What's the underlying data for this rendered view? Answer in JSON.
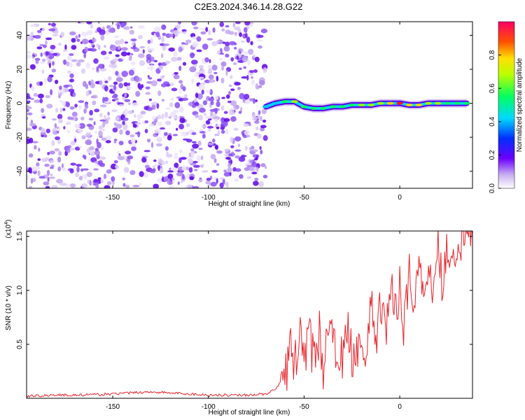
{
  "title": "C2E3.2024.346.14.28.G22",
  "colors": {
    "snr_line": "#e8232a",
    "axis": "#000000"
  },
  "chart_data": [
    {
      "type": "heatmap",
      "title": "C2E3.2024.346.14.28.G22",
      "xlabel": "Height of straight line (km)",
      "ylabel": "Frequency (Hz)",
      "xlim": [
        -195,
        38
      ],
      "ylim": [
        -50,
        48
      ],
      "xticks": [
        -150,
        -100,
        -50,
        0
      ],
      "xtick_labels": [
        "-150",
        "-100",
        "-50",
        "0"
      ],
      "yticks": [
        40,
        20,
        0,
        -20,
        -40
      ],
      "ytick_labels": [
        "40",
        "20",
        "0",
        "-20",
        "-40"
      ],
      "noise_region_x": [
        -195,
        -70
      ],
      "signal_ridge": {
        "x": [
          -70,
          -65,
          -60,
          -55,
          -50,
          -45,
          -40,
          -35,
          -30,
          -25,
          -20,
          -15,
          -10,
          -5,
          0,
          5,
          10,
          15,
          20,
          25,
          30,
          35
        ],
        "freq": [
          -2,
          0,
          1,
          1,
          -2,
          -3,
          -3,
          -2,
          -2,
          -1,
          -1,
          -1,
          0,
          0,
          0,
          -1,
          -1,
          0,
          0,
          0,
          0,
          0
        ],
        "amplitude": [
          0.3,
          0.45,
          0.6,
          0.7,
          0.5,
          0.55,
          0.6,
          0.55,
          0.6,
          0.6,
          0.65,
          0.7,
          0.75,
          0.8,
          0.95,
          0.85,
          0.8,
          0.75,
          0.65,
          0.6,
          0.55,
          0.5
        ]
      },
      "colorbar": {
        "label": "Normalized spectral amplitude",
        "range": [
          0.0,
          1.0
        ],
        "ticks": [
          0.0,
          0.2,
          0.4,
          0.6,
          0.8
        ],
        "tick_labels": [
          "0.0",
          "0.2",
          "0.4",
          "0.6",
          "0.8"
        ]
      }
    },
    {
      "type": "line",
      "xlabel": "Height of straight line (km)",
      "ylabel": "SNR (10 * v/v)",
      "y_multiplier": "(x10",
      "y_multiplier_exp": "4",
      "y_multiplier_close": ")",
      "xlim": [
        -195,
        38
      ],
      "ylim": [
        0,
        1.55
      ],
      "xticks": [
        -150,
        -100,
        -50,
        0
      ],
      "xtick_labels": [
        "-150",
        "-100",
        "-50",
        "0"
      ],
      "yticks": [
        0.5,
        1.0,
        1.5
      ],
      "ytick_labels": [
        "0.5",
        "1.0",
        "1.5"
      ],
      "series": [
        {
          "name": "SNR",
          "x": [
            -195,
            -180,
            -165,
            -150,
            -140,
            -130,
            -120,
            -110,
            -100,
            -90,
            -80,
            -70,
            -65,
            -60,
            -57,
            -55,
            -52,
            -50,
            -47,
            -45,
            -42,
            -40,
            -37,
            -35,
            -32,
            -30,
            -27,
            -25,
            -22,
            -20,
            -17,
            -15,
            -12,
            -10,
            -7,
            -5,
            -2,
            0,
            2,
            5,
            7,
            10,
            12,
            15,
            17,
            20,
            22,
            25,
            27,
            30,
            33,
            35,
            38
          ],
          "y": [
            0.02,
            0.03,
            0.03,
            0.04,
            0.05,
            0.06,
            0.05,
            0.04,
            0.03,
            0.03,
            0.03,
            0.04,
            0.08,
            0.2,
            0.45,
            0.3,
            0.6,
            0.4,
            0.55,
            0.35,
            0.6,
            0.3,
            0.7,
            0.45,
            0.5,
            0.35,
            0.6,
            0.4,
            0.5,
            0.6,
            0.35,
            0.9,
            0.5,
            0.9,
            0.7,
            1.0,
            0.8,
            1.1,
            0.7,
            1.15,
            0.9,
            1.25,
            0.95,
            1.3,
            1.0,
            1.45,
            1.1,
            1.4,
            1.3,
            1.45,
            1.45,
            1.5,
            1.5
          ]
        }
      ]
    }
  ]
}
